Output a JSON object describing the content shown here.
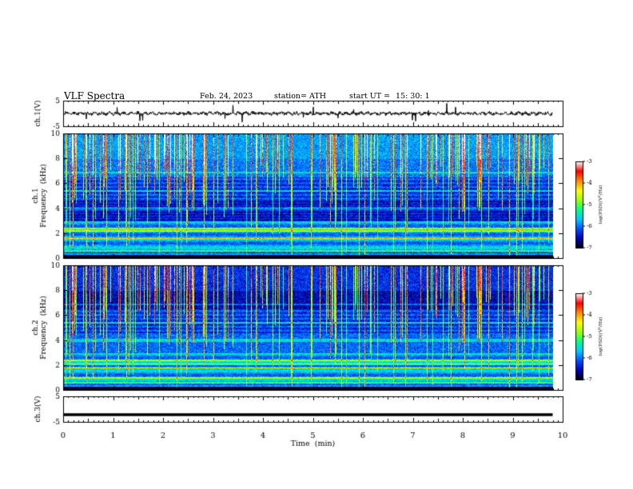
{
  "header": {
    "title": "VLF  Spectra",
    "date": "Feb. 24, 2023",
    "station": "station= ATH",
    "start_label": "start  UT  =",
    "start_time": "15: 30: 1"
  },
  "colors": {
    "spectrogram_scale": [
      "#000000",
      "#0000b4",
      "#0050ff",
      "#00c8ff",
      "#00ff8c",
      "#a0ff00",
      "#ffff00",
      "#ff8c00",
      "#ff0000",
      "#ffffff"
    ],
    "trace": "#000000"
  },
  "chart_data": [
    {
      "type": "line",
      "name": "ch1-waveform",
      "ylabel": "ch.1(V)",
      "ylim": [
        -5,
        5
      ],
      "yticks": [
        "5",
        "-5"
      ],
      "xlim": [
        0,
        10
      ],
      "baseline": 0,
      "amplitude_approx": 1.2,
      "data_end_min": 9.8
    },
    {
      "type": "heatmap",
      "name": "ch1-spectrogram",
      "ylabel": "ch.1\nFrequency  (kHz)",
      "ylim": [
        0,
        10
      ],
      "yticks": [
        "0",
        "2",
        "4",
        "6",
        "8",
        "10"
      ],
      "xlim": [
        0,
        10
      ],
      "colorbar": {
        "label": "log(PSD)(V²/Hz)",
        "ticks": [
          "-3",
          "-4",
          "-5",
          "-6",
          "-7"
        ],
        "range": [
          -7,
          -3
        ]
      },
      "strong_bands_khz": [
        0.6,
        1.6,
        2.2,
        2.4
      ]
    },
    {
      "type": "heatmap",
      "name": "ch2-spectrogram",
      "ylabel": "ch.2\nFrequency  (kHz)",
      "ylim": [
        0,
        10
      ],
      "yticks": [
        "0",
        "2",
        "4",
        "6",
        "8",
        "10"
      ],
      "xlim": [
        0,
        10
      ],
      "colorbar": {
        "label": "log(PSD)(V²/Hz)",
        "ticks": [
          "-3",
          "-4",
          "-5",
          "-6",
          "-7"
        ],
        "range": [
          -7,
          -3
        ]
      },
      "strong_bands_khz": [
        0.6,
        1.0,
        1.8,
        2.1,
        2.4
      ]
    },
    {
      "type": "line",
      "name": "ch3-waveform",
      "ylabel": "ch.3(V)",
      "ylim": [
        -5,
        5
      ],
      "yticks": [
        "5",
        "-5"
      ],
      "xlim": [
        0,
        10
      ],
      "baseline": -2.2,
      "amplitude_approx": 0.15,
      "data_end_min": 9.8
    }
  ],
  "x_axis": {
    "label": "Time  (min)",
    "ticks": [
      "0",
      "1",
      "2",
      "3",
      "4",
      "5",
      "6",
      "7",
      "8",
      "9",
      "10"
    ]
  }
}
